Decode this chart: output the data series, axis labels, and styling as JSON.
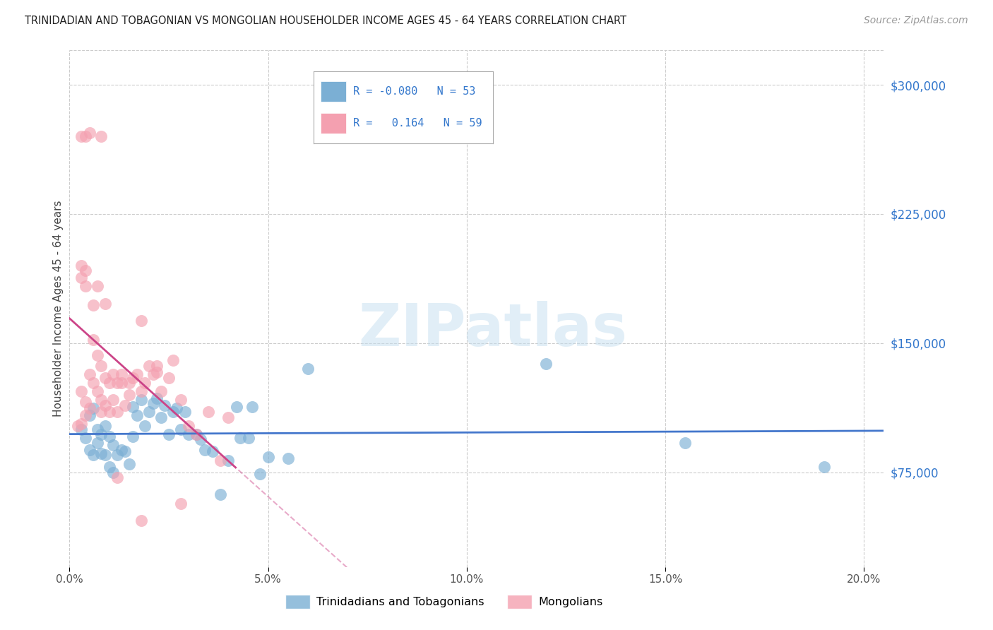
{
  "title": "TRINIDADIAN AND TOBAGONIAN VS MONGOLIAN HOUSEHOLDER INCOME AGES 45 - 64 YEARS CORRELATION CHART",
  "source": "Source: ZipAtlas.com",
  "ylabel": "Householder Income Ages 45 - 64 years",
  "xlim": [
    0,
    0.205
  ],
  "ylim": [
    20000,
    320000
  ],
  "xticks": [
    0.0,
    0.05,
    0.1,
    0.15,
    0.2
  ],
  "xticklabels": [
    "0.0%",
    "5.0%",
    "10.0%",
    "15.0%",
    "20.0%"
  ],
  "yticks_right": [
    75000,
    150000,
    225000,
    300000
  ],
  "ytick_labels_right": [
    "$75,000",
    "$150,000",
    "$225,000",
    "$300,000"
  ],
  "grid_color": "#cccccc",
  "background_color": "#ffffff",
  "blue_color": "#7bafd4",
  "pink_color": "#f4a0b0",
  "blue_line_color": "#4477cc",
  "pink_line_color": "#cc4488",
  "blue_R": -0.08,
  "blue_N": 53,
  "pink_R": 0.164,
  "pink_N": 59,
  "legend_label_blue": "Trinidadians and Tobagonians",
  "legend_label_pink": "Mongolians",
  "watermark_text": "ZIPatlas",
  "blue_x": [
    0.003,
    0.004,
    0.005,
    0.005,
    0.006,
    0.006,
    0.007,
    0.007,
    0.008,
    0.008,
    0.009,
    0.009,
    0.01,
    0.01,
    0.011,
    0.011,
    0.012,
    0.013,
    0.014,
    0.015,
    0.016,
    0.016,
    0.017,
    0.018,
    0.019,
    0.02,
    0.021,
    0.022,
    0.023,
    0.024,
    0.025,
    0.026,
    0.027,
    0.028,
    0.029,
    0.03,
    0.032,
    0.033,
    0.034,
    0.036,
    0.038,
    0.04,
    0.042,
    0.043,
    0.045,
    0.046,
    0.048,
    0.05,
    0.055,
    0.06,
    0.12,
    0.155,
    0.19
  ],
  "blue_y": [
    100000,
    95000,
    108000,
    88000,
    112000,
    85000,
    100000,
    92000,
    97000,
    86000,
    102000,
    85000,
    96000,
    78000,
    91000,
    75000,
    85000,
    88000,
    87000,
    80000,
    113000,
    96000,
    108000,
    117000,
    102000,
    110000,
    115000,
    118000,
    107000,
    114000,
    97000,
    110000,
    112000,
    100000,
    110000,
    97000,
    97000,
    94000,
    88000,
    87000,
    62000,
    82000,
    113000,
    95000,
    95000,
    113000,
    74000,
    84000,
    83000,
    135000,
    138000,
    92000,
    78000
  ],
  "pink_x": [
    0.002,
    0.003,
    0.003,
    0.003,
    0.004,
    0.004,
    0.004,
    0.005,
    0.005,
    0.006,
    0.006,
    0.007,
    0.007,
    0.008,
    0.008,
    0.008,
    0.009,
    0.009,
    0.01,
    0.01,
    0.011,
    0.011,
    0.012,
    0.012,
    0.013,
    0.013,
    0.014,
    0.015,
    0.015,
    0.016,
    0.017,
    0.018,
    0.019,
    0.02,
    0.021,
    0.022,
    0.023,
    0.025,
    0.026,
    0.028,
    0.03,
    0.032,
    0.035,
    0.038,
    0.04,
    0.022,
    0.003,
    0.004,
    0.005,
    0.008,
    0.003,
    0.004,
    0.006,
    0.007,
    0.009,
    0.012,
    0.018,
    0.028,
    0.018
  ],
  "pink_y": [
    102000,
    122000,
    103000,
    195000,
    116000,
    108000,
    192000,
    132000,
    112000,
    152000,
    127000,
    143000,
    122000,
    137000,
    117000,
    110000,
    130000,
    114000,
    127000,
    110000,
    132000,
    117000,
    127000,
    110000,
    132000,
    127000,
    114000,
    120000,
    127000,
    130000,
    132000,
    122000,
    127000,
    137000,
    132000,
    137000,
    122000,
    130000,
    140000,
    117000,
    102000,
    97000,
    110000,
    82000,
    107000,
    133000,
    270000,
    270000,
    272000,
    270000,
    188000,
    183000,
    172000,
    183000,
    173000,
    72000,
    163000,
    57000,
    47000
  ]
}
